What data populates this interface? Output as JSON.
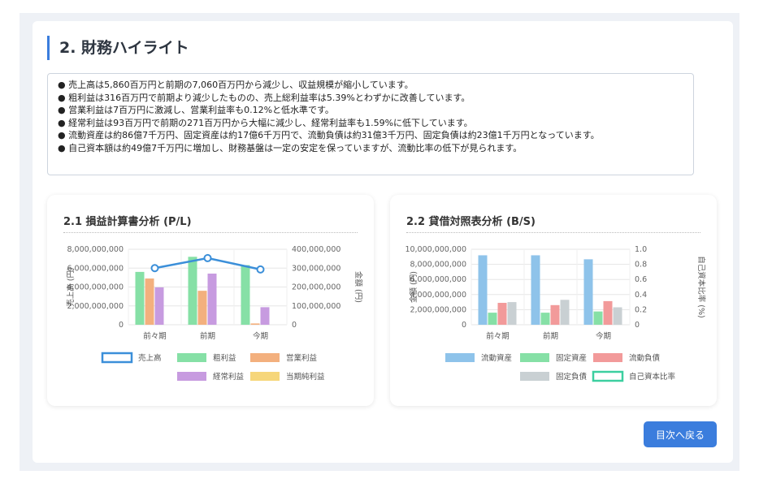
{
  "section": {
    "title": "2. 財務ハイライト"
  },
  "summary": [
    "● 売上高は5,860百万円と前期の7,060百万円から減少し、収益規模が縮小しています。",
    "● 粗利益は316百万円で前期より減少したものの、売上総利益率は5.39%とわずかに改善しています。",
    "● 営業利益は7百万円に激減し、営業利益率も0.12%と低水準です。",
    "● 経常利益は93百万円で前期の271百万円から大幅に減少し、経常利益率も1.59%に低下しています。",
    "● 流動資産は約86億7千万円、固定資産は約17億6千万円で、流動負債は約31億3千万円、固定負債は約23億1千万円となっています。",
    "● 自己資本額は約49億7千万円に増加し、財務基盤は一定の安定を保っていますが、流動比率の低下が見られます。"
  ],
  "back_button": "目次へ戻る",
  "chart_data": [
    {
      "type": "bar",
      "title": "2.1 損益計算書分析 (P/L)",
      "categories": [
        "前々期",
        "前期",
        "今期"
      ],
      "ylabel_left": "売上高 (円)",
      "ylabel_right": "金額 (円)",
      "ylim_left": [
        0,
        8000000000
      ],
      "ylim_right": [
        0,
        400000000
      ],
      "ticks_left": [
        "0",
        "2,000,000,000",
        "4,000,000,000",
        "6,000,000,000",
        "8,000,000,000"
      ],
      "ticks_right": [
        "0",
        "100,000,000",
        "200,000,000",
        "300,000,000",
        "400,000,000"
      ],
      "series": [
        {
          "name": "売上高",
          "type": "line",
          "axis": "left",
          "color": "#3b8fd9",
          "values": [
            6000000000,
            7060000000,
            5860000000
          ]
        },
        {
          "name": "粗利益",
          "type": "bar",
          "axis": "right",
          "color": "#86e0a6",
          "values": [
            280000000,
            360000000,
            316000000
          ]
        },
        {
          "name": "営業利益",
          "type": "bar",
          "axis": "right",
          "color": "#f3b07e",
          "values": [
            245000000,
            180000000,
            7000000
          ]
        },
        {
          "name": "経常利益",
          "type": "bar",
          "axis": "right",
          "color": "#c79be0",
          "values": [
            198000000,
            271000000,
            93000000
          ]
        },
        {
          "name": "当期純利益",
          "type": "bar",
          "axis": "right",
          "color": "#f6d67a",
          "values": [
            0,
            0,
            0
          ]
        }
      ],
      "legend_rows": [
        [
          "売上高",
          "粗利益",
          "営業利益"
        ],
        [
          "経常利益",
          "当期純利益"
        ]
      ]
    },
    {
      "type": "bar",
      "title": "2.2 貸借対照表分析 (B/S)",
      "categories": [
        "前々期",
        "前期",
        "今期"
      ],
      "ylabel_left": "金額 (円)",
      "ylabel_right": "自己資本比率 (%)",
      "ylim_left": [
        0,
        10000000000
      ],
      "ylim_right": [
        0,
        1.0
      ],
      "ticks_left": [
        "0",
        "2,000,000,000",
        "4,000,000,000",
        "6,000,000,000",
        "8,000,000,000",
        "10,000,000,000"
      ],
      "ticks_right": [
        "0",
        "0.2",
        "0.4",
        "0.6",
        "0.8",
        "1.0"
      ],
      "series": [
        {
          "name": "流動資産",
          "type": "bar",
          "axis": "left",
          "color": "#8ec3ea",
          "values": [
            9200000000,
            9200000000,
            8670000000
          ]
        },
        {
          "name": "固定資産",
          "type": "bar",
          "axis": "left",
          "color": "#86e0a6",
          "values": [
            1600000000,
            1600000000,
            1760000000
          ]
        },
        {
          "name": "流動負債",
          "type": "bar",
          "axis": "left",
          "color": "#f29a9a",
          "values": [
            2900000000,
            2600000000,
            3130000000
          ]
        },
        {
          "name": "固定負債",
          "type": "bar",
          "axis": "left",
          "color": "#c9d0d3",
          "values": [
            3000000000,
            3300000000,
            2310000000
          ]
        },
        {
          "name": "自己資本比率",
          "type": "line",
          "axis": "right",
          "color": "#3ccfa0",
          "values": [
            0,
            0,
            0
          ]
        }
      ],
      "legend_rows": [
        [
          "流動資産",
          "固定資産",
          "流動負債"
        ],
        [
          "固定負債",
          "自己資本比率"
        ]
      ]
    }
  ]
}
